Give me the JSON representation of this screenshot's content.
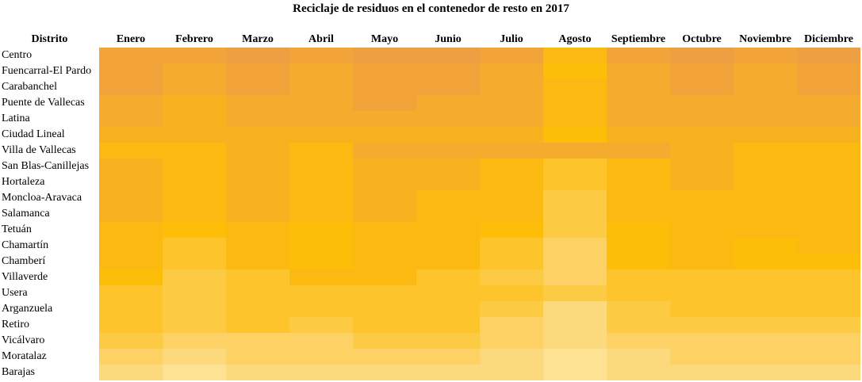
{
  "title": "Reciclaje de residuos en el contenedor de resto en 2017",
  "table": {
    "header": [
      "Distrito",
      "Enero",
      "Febrero",
      "Marzo",
      "Abril",
      "Mayo",
      "Junio",
      "Julio",
      "Agosto",
      "Septiembre",
      "Octubre",
      "Noviembre",
      "Diciembre"
    ],
    "rows": [
      {
        "label": "Centro",
        "colors": [
          "#f2a43a",
          "#f2a43a",
          "#ee9f42",
          "#f2a43a",
          "#ee9f42",
          "#ee9f42",
          "#f2a43a",
          "#fbb912",
          "#f2a43a",
          "#ee9f42",
          "#f2a43a",
          "#ee9f42"
        ]
      },
      {
        "label": "Fuencarral-El Pardo",
        "colors": [
          "#f2a43a",
          "#f5ab2e",
          "#f2a43a",
          "#f5ab2e",
          "#f2a43a",
          "#f2a43a",
          "#f5ab2e",
          "#fdbe0a",
          "#f5ab2e",
          "#f2a43a",
          "#f5ab2e",
          "#f2a43a"
        ]
      },
      {
        "label": "Carabanchel",
        "colors": [
          "#f2a43a",
          "#f5ab2e",
          "#f2a43a",
          "#f5ab2e",
          "#f2a43a",
          "#f2a43a",
          "#f5ab2e",
          "#fbb912",
          "#f5ab2e",
          "#f2a43a",
          "#f5ab2e",
          "#f2a43a"
        ]
      },
      {
        "label": "Puente de Vallecas",
        "colors": [
          "#f5ab2e",
          "#f8b220",
          "#f5ab2e",
          "#f5ab2e",
          "#f2a43a",
          "#f5ab2e",
          "#f5ab2e",
          "#fbb912",
          "#f5ab2e",
          "#f5ab2e",
          "#f5ab2e",
          "#f5ab2e"
        ]
      },
      {
        "label": "Latina",
        "colors": [
          "#f5ab2e",
          "#f8b220",
          "#f5ab2e",
          "#f5ab2e",
          "#f5ab2e",
          "#f5ab2e",
          "#f5ab2e",
          "#fbb912",
          "#f5ab2e",
          "#f5ab2e",
          "#f5ab2e",
          "#f5ab2e"
        ]
      },
      {
        "label": "Ciudad Lineal",
        "colors": [
          "#f8b220",
          "#f8b220",
          "#f8b220",
          "#f8b220",
          "#f8b220",
          "#f8b220",
          "#f8b220",
          "#fdbe0a",
          "#f8b220",
          "#f8b220",
          "#f8b220",
          "#f8b220"
        ]
      },
      {
        "label": "Villa de Vallecas",
        "colors": [
          "#fbb912",
          "#fbb912",
          "#f8b220",
          "#fbb912",
          "#f5ab2e",
          "#f5ab2e",
          "#f5ab2e",
          "#f5ab2e",
          "#f5ab2e",
          "#f8b220",
          "#fbb912",
          "#fbb912"
        ]
      },
      {
        "label": "San Blas-Canillejas",
        "colors": [
          "#f8b220",
          "#fbb912",
          "#f8b220",
          "#fbb912",
          "#f8b220",
          "#f8b220",
          "#fbb912",
          "#fdc42c",
          "#fbb912",
          "#f8b220",
          "#fbb912",
          "#fbb912"
        ]
      },
      {
        "label": "Hortaleza",
        "colors": [
          "#f8b220",
          "#fbb912",
          "#f8b220",
          "#fbb912",
          "#f8b220",
          "#f8b220",
          "#fbb912",
          "#fdc42c",
          "#fbb912",
          "#f8b220",
          "#fbb912",
          "#fbb912"
        ]
      },
      {
        "label": "Moncloa-Aravaca",
        "colors": [
          "#f8b220",
          "#fbb912",
          "#f8b220",
          "#fbb912",
          "#f8b220",
          "#fbb912",
          "#fbb912",
          "#fdca44",
          "#fbb912",
          "#fbb912",
          "#fbb912",
          "#fbb912"
        ]
      },
      {
        "label": "Salamanca",
        "colors": [
          "#f8b220",
          "#fbb912",
          "#f8b220",
          "#fbb912",
          "#f8b220",
          "#fbb912",
          "#fbb912",
          "#fdca44",
          "#fbb912",
          "#fbb912",
          "#fbb912",
          "#fbb912"
        ]
      },
      {
        "label": "Tetuán",
        "colors": [
          "#fbb912",
          "#fdbe0a",
          "#fbb912",
          "#fdbe0a",
          "#fbb912",
          "#fbb912",
          "#fdbe0a",
          "#fdca44",
          "#fdbe0a",
          "#fbb912",
          "#fbb912",
          "#fbb912"
        ]
      },
      {
        "label": "Chamartín",
        "colors": [
          "#fbb912",
          "#fdc42c",
          "#fbb912",
          "#fdbe0a",
          "#fbb912",
          "#fbb912",
          "#fdc42c",
          "#fdd163",
          "#fdbe0a",
          "#fbb912",
          "#fdbe0a",
          "#fbb912"
        ]
      },
      {
        "label": "Chamberí",
        "colors": [
          "#fbb912",
          "#fdc42c",
          "#fbb912",
          "#fdbe0a",
          "#fbb912",
          "#fbb912",
          "#fdc42c",
          "#fdd163",
          "#fdbe0a",
          "#fbb912",
          "#fdbe0a",
          "#fdbe0a"
        ]
      },
      {
        "label": "Villaverde",
        "colors": [
          "#fdbe0a",
          "#fdca44",
          "#fdc42c",
          "#fbb912",
          "#fbb912",
          "#fdc42c",
          "#fdca44",
          "#fdd163",
          "#fdc42c",
          "#fdc42c",
          "#fdc42c",
          "#fdc42c"
        ]
      },
      {
        "label": "Usera",
        "colors": [
          "#fdc42c",
          "#fdca44",
          "#fdc42c",
          "#fdc42c",
          "#fdc42c",
          "#fdc42c",
          "#fdc42c",
          "#fdca44",
          "#fdc42c",
          "#fdc42c",
          "#fdc42c",
          "#fdc42c"
        ]
      },
      {
        "label": "Arganzuela",
        "colors": [
          "#fdc42c",
          "#fdca44",
          "#fdc42c",
          "#fdc42c",
          "#fdc42c",
          "#fdc42c",
          "#fdca44",
          "#fdd97d",
          "#fdca44",
          "#fdc42c",
          "#fdc42c",
          "#fdc42c"
        ]
      },
      {
        "label": "Retiro",
        "colors": [
          "#fdc42c",
          "#fdca44",
          "#fdc42c",
          "#fdca44",
          "#fdc42c",
          "#fdc42c",
          "#fdd163",
          "#fdd97d",
          "#fdca44",
          "#fdca44",
          "#fdca44",
          "#fdca44"
        ]
      },
      {
        "label": "Vicálvaro",
        "colors": [
          "#fdca44",
          "#fdd163",
          "#fdd163",
          "#fdd163",
          "#fdca44",
          "#fdca44",
          "#fdd163",
          "#fdd97d",
          "#fdd163",
          "#fdd163",
          "#fdd163",
          "#fdd163"
        ]
      },
      {
        "label": "Moratalaz",
        "colors": [
          "#fdd163",
          "#fdd97d",
          "#fdd163",
          "#fdd163",
          "#fdd163",
          "#fdd163",
          "#fdd97d",
          "#fee293",
          "#fdd97d",
          "#fdd163",
          "#fdd163",
          "#fdd163"
        ]
      },
      {
        "label": "Barajas",
        "colors": [
          "#fdd97d",
          "#fee293",
          "#fdd97d",
          "#fdd97d",
          "#fdd97d",
          "#fdd97d",
          "#fdd97d",
          "#fee293",
          "#fdd97d",
          "#fdd97d",
          "#fdd97d",
          "#fdd97d"
        ]
      }
    ]
  }
}
